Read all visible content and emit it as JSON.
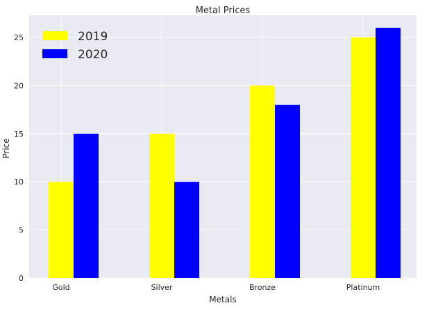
{
  "colors": {
    "plot_background": "#EAEAF2",
    "grid": "#FFFFFF",
    "series_2019": "#FFFF00",
    "series_2020": "#0000FF"
  },
  "chart_data": {
    "type": "bar",
    "title": "Metal Prices",
    "xlabel": "Metals",
    "ylabel": "Price",
    "categories": [
      "Gold",
      "Silver",
      "Bronze",
      "Platinum"
    ],
    "series": [
      {
        "name": "2019",
        "values": [
          10,
          15,
          20,
          25
        ],
        "color": "#FFFF00"
      },
      {
        "name": "2020",
        "values": [
          15,
          10,
          18,
          26
        ],
        "color": "#0000FF"
      }
    ],
    "ylim": [
      0,
      27.3
    ],
    "yticks": [
      0,
      5,
      10,
      15,
      20,
      25
    ],
    "grid": true,
    "legend_position": "top-left"
  }
}
